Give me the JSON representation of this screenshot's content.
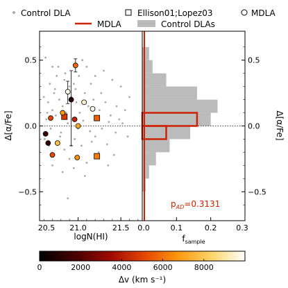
{
  "chart_data": [
    {
      "type": "scatter",
      "xlabel": "logN(HI)",
      "ylabel": "Δ[α/Fe]",
      "xlim": [
        20.55,
        21.75
      ],
      "ylim": [
        -0.72,
        0.72
      ],
      "xticks": [
        20.5,
        21.0,
        21.5
      ],
      "xtick_labels": [
        "20.5",
        "21.0",
        "21.5"
      ],
      "yticks": [
        -0.5,
        0.0,
        0.5
      ],
      "ytick_labels": [
        "−0.5",
        "0.0",
        "0.5"
      ],
      "reference_line": 0.0,
      "legend": {
        "placement": "top",
        "entries": [
          "Control DLA",
          "Ellison01;Lopez03",
          "MDLA"
        ]
      },
      "series": [
        {
          "name": "Control DLA",
          "marker": "dot",
          "points": [
            [
              20.62,
              0.52
            ],
            [
              20.7,
              0.45
            ],
            [
              20.75,
              0.38
            ],
            [
              20.85,
              0.4
            ],
            [
              20.9,
              0.3
            ],
            [
              20.95,
              0.32
            ],
            [
              21.05,
              0.5
            ],
            [
              21.1,
              0.45
            ],
            [
              21.2,
              0.38
            ],
            [
              21.3,
              0.42
            ],
            [
              21.4,
              0.35
            ],
            [
              21.5,
              0.3
            ],
            [
              21.6,
              0.22
            ],
            [
              20.6,
              0.22
            ],
            [
              20.65,
              0.18
            ],
            [
              20.7,
              0.12
            ],
            [
              20.72,
              0.25
            ],
            [
              20.78,
              0.2
            ],
            [
              20.82,
              0.15
            ],
            [
              20.86,
              0.1
            ],
            [
              20.92,
              0.22
            ],
            [
              20.98,
              0.18
            ],
            [
              21.02,
              0.1
            ],
            [
              21.08,
              0.25
            ],
            [
              21.12,
              0.15
            ],
            [
              21.18,
              0.2
            ],
            [
              21.25,
              0.12
            ],
            [
              21.32,
              0.18
            ],
            [
              21.38,
              0.08
            ],
            [
              21.45,
              0.15
            ],
            [
              21.55,
              0.12
            ],
            [
              20.63,
              0.05
            ],
            [
              20.68,
              -0.02
            ],
            [
              20.74,
              0.08
            ],
            [
              20.8,
              -0.05
            ],
            [
              20.88,
              0.02
            ],
            [
              20.94,
              0.06
            ],
            [
              21.0,
              -0.02
            ],
            [
              21.06,
              0.04
            ],
            [
              21.14,
              -0.04
            ],
            [
              21.22,
              0.06
            ],
            [
              21.28,
              -0.02
            ],
            [
              21.36,
              0.03
            ],
            [
              21.44,
              -0.05
            ],
            [
              21.52,
              0.02
            ],
            [
              20.61,
              -0.1
            ],
            [
              20.66,
              -0.15
            ],
            [
              20.71,
              -0.22
            ],
            [
              20.76,
              -0.12
            ],
            [
              20.84,
              -0.18
            ],
            [
              20.9,
              -0.25
            ],
            [
              20.96,
              -0.1
            ],
            [
              21.04,
              -0.15
            ],
            [
              21.1,
              -0.28
            ],
            [
              21.16,
              -0.12
            ],
            [
              21.24,
              -0.2
            ],
            [
              21.34,
              -0.14
            ],
            [
              21.42,
              -0.22
            ],
            [
              20.7,
              -0.3
            ],
            [
              20.82,
              -0.35
            ],
            [
              20.95,
              -0.32
            ],
            [
              21.08,
              -0.38
            ],
            [
              20.88,
              -0.55
            ],
            [
              20.64,
              0.1
            ],
            [
              20.73,
              0.28
            ],
            [
              20.79,
              -0.08
            ],
            [
              20.97,
              0.28
            ],
            [
              21.15,
              0.32
            ],
            [
              21.27,
              0.25
            ],
            [
              21.48,
              0.05
            ],
            [
              21.58,
              -0.08
            ],
            [
              20.84,
              0.35
            ],
            [
              20.92,
              -0.15
            ],
            [
              21.01,
              0.38
            ],
            [
              21.2,
              -0.08
            ],
            [
              20.67,
              0.32
            ],
            [
              20.77,
              0.45
            ],
            [
              21.35,
              -0.3
            ]
          ]
        },
        {
          "name": "Ellison01;Lopez03",
          "marker": "square",
          "points": [
            [
              20.84,
              0.07,
              4800
            ],
            [
              21.22,
              0.06,
              5600
            ],
            [
              21.22,
              -0.23,
              6200
            ]
          ]
        },
        {
          "name": "MDLA",
          "marker": "circle",
          "points": [
            [
              20.62,
              -0.06,
              1500
            ],
            [
              20.65,
              -0.13,
              1200
            ],
            [
              20.68,
              0.06,
              5000
            ],
            [
              20.7,
              -0.22,
              5200
            ],
            [
              20.76,
              -0.13,
              7800
            ],
            [
              20.82,
              0.1,
              6800
            ],
            [
              20.88,
              0.26,
              9800
            ],
            [
              20.92,
              0.2,
              800
            ],
            [
              20.97,
              0.46,
              5800
            ],
            [
              20.99,
              -0.24,
              6600
            ],
            [
              21.0,
              0.0,
              7200
            ],
            [
              21.07,
              0.18,
              9500
            ],
            [
              21.17,
              0.13,
              9800
            ],
            [
              20.96,
              0.05,
              4200
            ]
          ],
          "error_bars": [
            {
              "x": 20.88,
              "y": 0.26,
              "lo": 0.17,
              "hi": 0.34
            },
            {
              "x": 20.92,
              "y": 0.2,
              "lo": -0.15,
              "hi": 0.42
            },
            {
              "x": 20.97,
              "y": 0.46,
              "lo": 0.41,
              "hi": 0.51
            }
          ]
        }
      ]
    },
    {
      "type": "bar",
      "orientation": "horizontal",
      "xlabel": "f",
      "xlabel_subscript": "sample",
      "ylabel": "Δ[α/Fe]",
      "xlim": [
        0,
        0.3
      ],
      "ylim": [
        -0.72,
        0.72
      ],
      "xticks": [
        0.0,
        0.1,
        0.2,
        0.3
      ],
      "xtick_labels": [
        "0.0",
        "0.1",
        "0.2",
        "0.3"
      ],
      "yticks": [
        -0.5,
        0.0,
        0.5
      ],
      "ytick_labels": [
        "−0.5",
        "0.0",
        "0.5"
      ],
      "reference_line": 0.0,
      "bin_edges": [
        -0.7,
        -0.6,
        -0.5,
        -0.4,
        -0.3,
        -0.2,
        -0.1,
        0.0,
        0.1,
        0.2,
        0.3,
        0.4,
        0.5,
        0.6,
        0.7
      ],
      "legend": {
        "placement": "top",
        "entries": [
          "MDLA",
          "Control DLAs"
        ]
      },
      "annotation": {
        "prefix": "p",
        "subscript": "AD",
        "suffix": "=0.3131",
        "color": "#cc2200"
      },
      "series": [
        {
          "name": "Control DLAs",
          "style": "filled",
          "color": "#bbbbbb",
          "values": [
            0.0,
            0.0,
            0.01,
            0.02,
            0.04,
            0.08,
            0.14,
            0.2,
            0.22,
            0.16,
            0.07,
            0.03,
            0.02,
            0.0
          ]
        },
        {
          "name": "MDLA",
          "style": "step",
          "color": "#cc2200",
          "values": [
            0.0,
            0.0,
            0.0,
            0.0,
            0.0,
            0.0,
            0.07,
            0.16,
            0.0,
            0.0,
            0.0,
            0.0,
            0.0,
            0.0
          ]
        }
      ]
    },
    {
      "type": "colorbar",
      "label": "Δv (km s⁻¹)",
      "range": [
        0,
        10000
      ],
      "ticks": [
        0,
        2000,
        4000,
        6000,
        8000
      ],
      "tick_labels": [
        "0",
        "2000",
        "4000",
        "6000",
        "8000"
      ]
    }
  ]
}
